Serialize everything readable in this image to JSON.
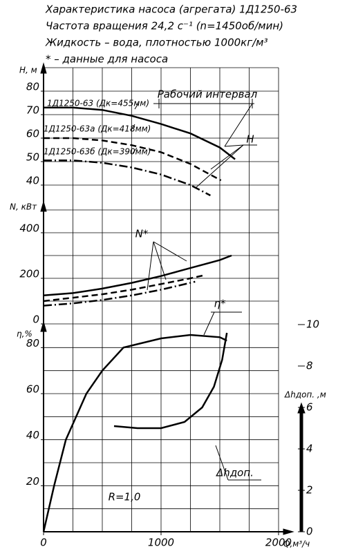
{
  "chart_data": [
    {
      "type": "line",
      "title": "Характеристика насоса (агрегата) 1Д1250-63",
      "subtitle": [
        "Частота вращения 24,2 с⁻¹ (n=1450об/мин)",
        "Жидкость – вода, плотностью 1000кг/м³",
        "* – данные для насоса"
      ],
      "y_label": "H, м",
      "xlim": [
        0,
        2000
      ],
      "ylim": [
        30,
        90
      ],
      "yticks": [
        40,
        50,
        60,
        70,
        80
      ],
      "ygrid": [
        40,
        50,
        60,
        70,
        80,
        90
      ],
      "series": [
        {
          "name": "1Д1250-63 (Дк=455мм)",
          "color": "#000000",
          "style": "solid",
          "x": [
            0,
            250,
            500,
            750,
            1000,
            1250,
            1500,
            1630
          ],
          "values": [
            73,
            73,
            72,
            69.5,
            66,
            62,
            56,
            51
          ]
        },
        {
          "name": "1Д1250-63а (Дк=418мм)",
          "color": "#000000",
          "style": "dashed",
          "x": [
            0,
            250,
            500,
            750,
            1000,
            1250,
            1510
          ],
          "values": [
            60,
            60,
            59,
            57,
            54,
            49,
            42
          ]
        },
        {
          "name": "1Д1250-63б (Дк=390мм)",
          "color": "#000000",
          "style": "dashdot",
          "x": [
            0,
            250,
            500,
            750,
            1000,
            1250,
            1420
          ],
          "values": [
            50.5,
            50.5,
            49.5,
            47.5,
            44.5,
            40,
            35.6
          ]
        }
      ],
      "annotations": [
        "Рабочий интервал",
        "H"
      ]
    },
    {
      "type": "line",
      "y_label": "N, кВт",
      "xlim": [
        0,
        2000
      ],
      "ylim": [
        0,
        500
      ],
      "yticks": [
        0,
        200,
        400
      ],
      "ygrid": [
        0,
        100,
        200,
        300,
        400,
        500
      ],
      "series": [
        {
          "name": "1Д1250-63",
          "color": "#000000",
          "style": "solid",
          "x": [
            0,
            250,
            500,
            750,
            1000,
            1250,
            1500,
            1600
          ],
          "values": [
            125,
            135,
            155,
            180,
            210,
            245,
            280,
            300
          ]
        },
        {
          "name": "1Д1250-63а",
          "color": "#000000",
          "style": "dashed",
          "x": [
            0,
            250,
            500,
            750,
            1000,
            1250,
            1380
          ],
          "values": [
            100,
            115,
            130,
            150,
            175,
            200,
            215
          ]
        },
        {
          "name": "1Д1250-63б",
          "color": "#000000",
          "style": "dashdot",
          "x": [
            0,
            250,
            500,
            750,
            1000,
            1290
          ],
          "values": [
            80,
            90,
            105,
            125,
            150,
            185
          ]
        }
      ],
      "annotations": [
        "N*"
      ]
    },
    {
      "type": "line",
      "y_label": "η,%",
      "y2_label": "Δhдоп. ,м",
      "x_label": "Q,м³/ч",
      "xlim": [
        0,
        2000
      ],
      "xticks": [
        0,
        1000,
        2000
      ],
      "xgrid": [
        0,
        250,
        500,
        750,
        1000,
        1250,
        1500,
        1750,
        2000
      ],
      "ylim": [
        0,
        90
      ],
      "yticks": [
        20,
        40,
        60,
        80
      ],
      "ygrid": [
        0,
        10,
        20,
        30,
        40,
        50,
        60,
        70,
        80
      ],
      "y2lim": [
        0,
        10
      ],
      "y2ticks": [
        0,
        2,
        4,
        6,
        8,
        10
      ],
      "series": [
        {
          "name": "η",
          "color": "#000000",
          "style": "solid",
          "x": [
            0,
            90,
            190,
            365,
            500,
            680,
            1000,
            1250,
            1500,
            1560
          ],
          "values": [
            0,
            20,
            40,
            60,
            70,
            80,
            84,
            85.5,
            84.5,
            83
          ]
        },
        {
          "name": "Δhдоп.",
          "color": "#000000",
          "style": "solid",
          "axis": "y2",
          "x": [
            600,
            800,
            1000,
            1200,
            1350,
            1450,
            1520,
            1560
          ],
          "values": [
            5.1,
            5.0,
            5.0,
            5.3,
            6.0,
            7.0,
            8.3,
            9.6
          ]
        }
      ],
      "annotations": [
        "η*",
        "Δhдоп.",
        "R=1,0"
      ]
    }
  ]
}
